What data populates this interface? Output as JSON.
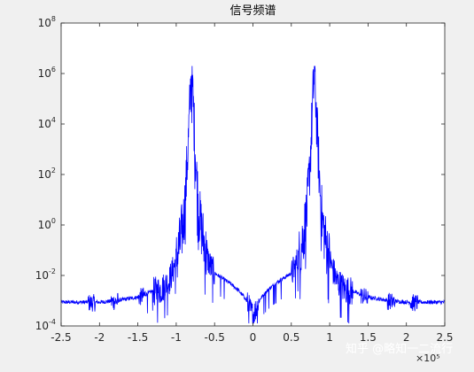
{
  "chart_data": {
    "type": "line",
    "title": "信号频谱",
    "xlabel": "",
    "ylabel": "",
    "x_multiplier": "×10⁵",
    "xlim": [
      -2.5,
      2.5
    ],
    "ylim_log10": [
      -4,
      8
    ],
    "yscale": "log",
    "grid": false,
    "legend": "none",
    "x_ticks": [
      "-2.5",
      "-2",
      "-1.5",
      "-1",
      "-0.5",
      "0",
      "0.5",
      "1",
      "1.5",
      "2",
      "2.5"
    ],
    "x_tick_values": [
      -2.5,
      -2,
      -1.5,
      -1,
      -0.5,
      0,
      0.5,
      1,
      1.5,
      2,
      2.5
    ],
    "y_ticks": [
      {
        "base": "10",
        "exp": "-4",
        "log": -4
      },
      {
        "base": "10",
        "exp": "-2",
        "log": -2
      },
      {
        "base": "10",
        "exp": "0",
        "log": 0
      },
      {
        "base": "10",
        "exp": "2",
        "log": 2
      },
      {
        "base": "10",
        "exp": "4",
        "log": 4
      },
      {
        "base": "10",
        "exp": "6",
        "log": 6
      },
      {
        "base": "10",
        "exp": "8",
        "log": 8
      }
    ],
    "series": [
      {
        "color": "#0000ff",
        "envelope": {
          "x": [
            0.0,
            0.02,
            0.05,
            0.1,
            0.2,
            0.3,
            0.4,
            0.5,
            0.55,
            0.6,
            0.65,
            0.7,
            0.73,
            0.76,
            0.78,
            0.8,
            0.82,
            0.84,
            0.87,
            0.9,
            0.95,
            1.0,
            1.05,
            1.1,
            1.2,
            1.3,
            1.4,
            1.5,
            1.6,
            1.8,
            2.0,
            2.2,
            2.4,
            2.5
          ],
          "y_log10": [
            -3.5,
            -3.4,
            -3.2,
            -2.9,
            -2.55,
            -2.3,
            -2.1,
            -1.9,
            -1.6,
            -1.2,
            -0.4,
            0.5,
            1.8,
            3.6,
            5.0,
            6.2,
            5.0,
            3.6,
            1.8,
            0.4,
            -0.6,
            -1.3,
            -1.8,
            -2.2,
            -2.5,
            -2.6,
            -2.75,
            -2.85,
            -2.9,
            -3.0,
            -3.05,
            -3.05,
            -3.05,
            -3.05
          ]
        }
      }
    ]
  },
  "watermark": {
    "text": "知乎 @略知一二流行"
  }
}
